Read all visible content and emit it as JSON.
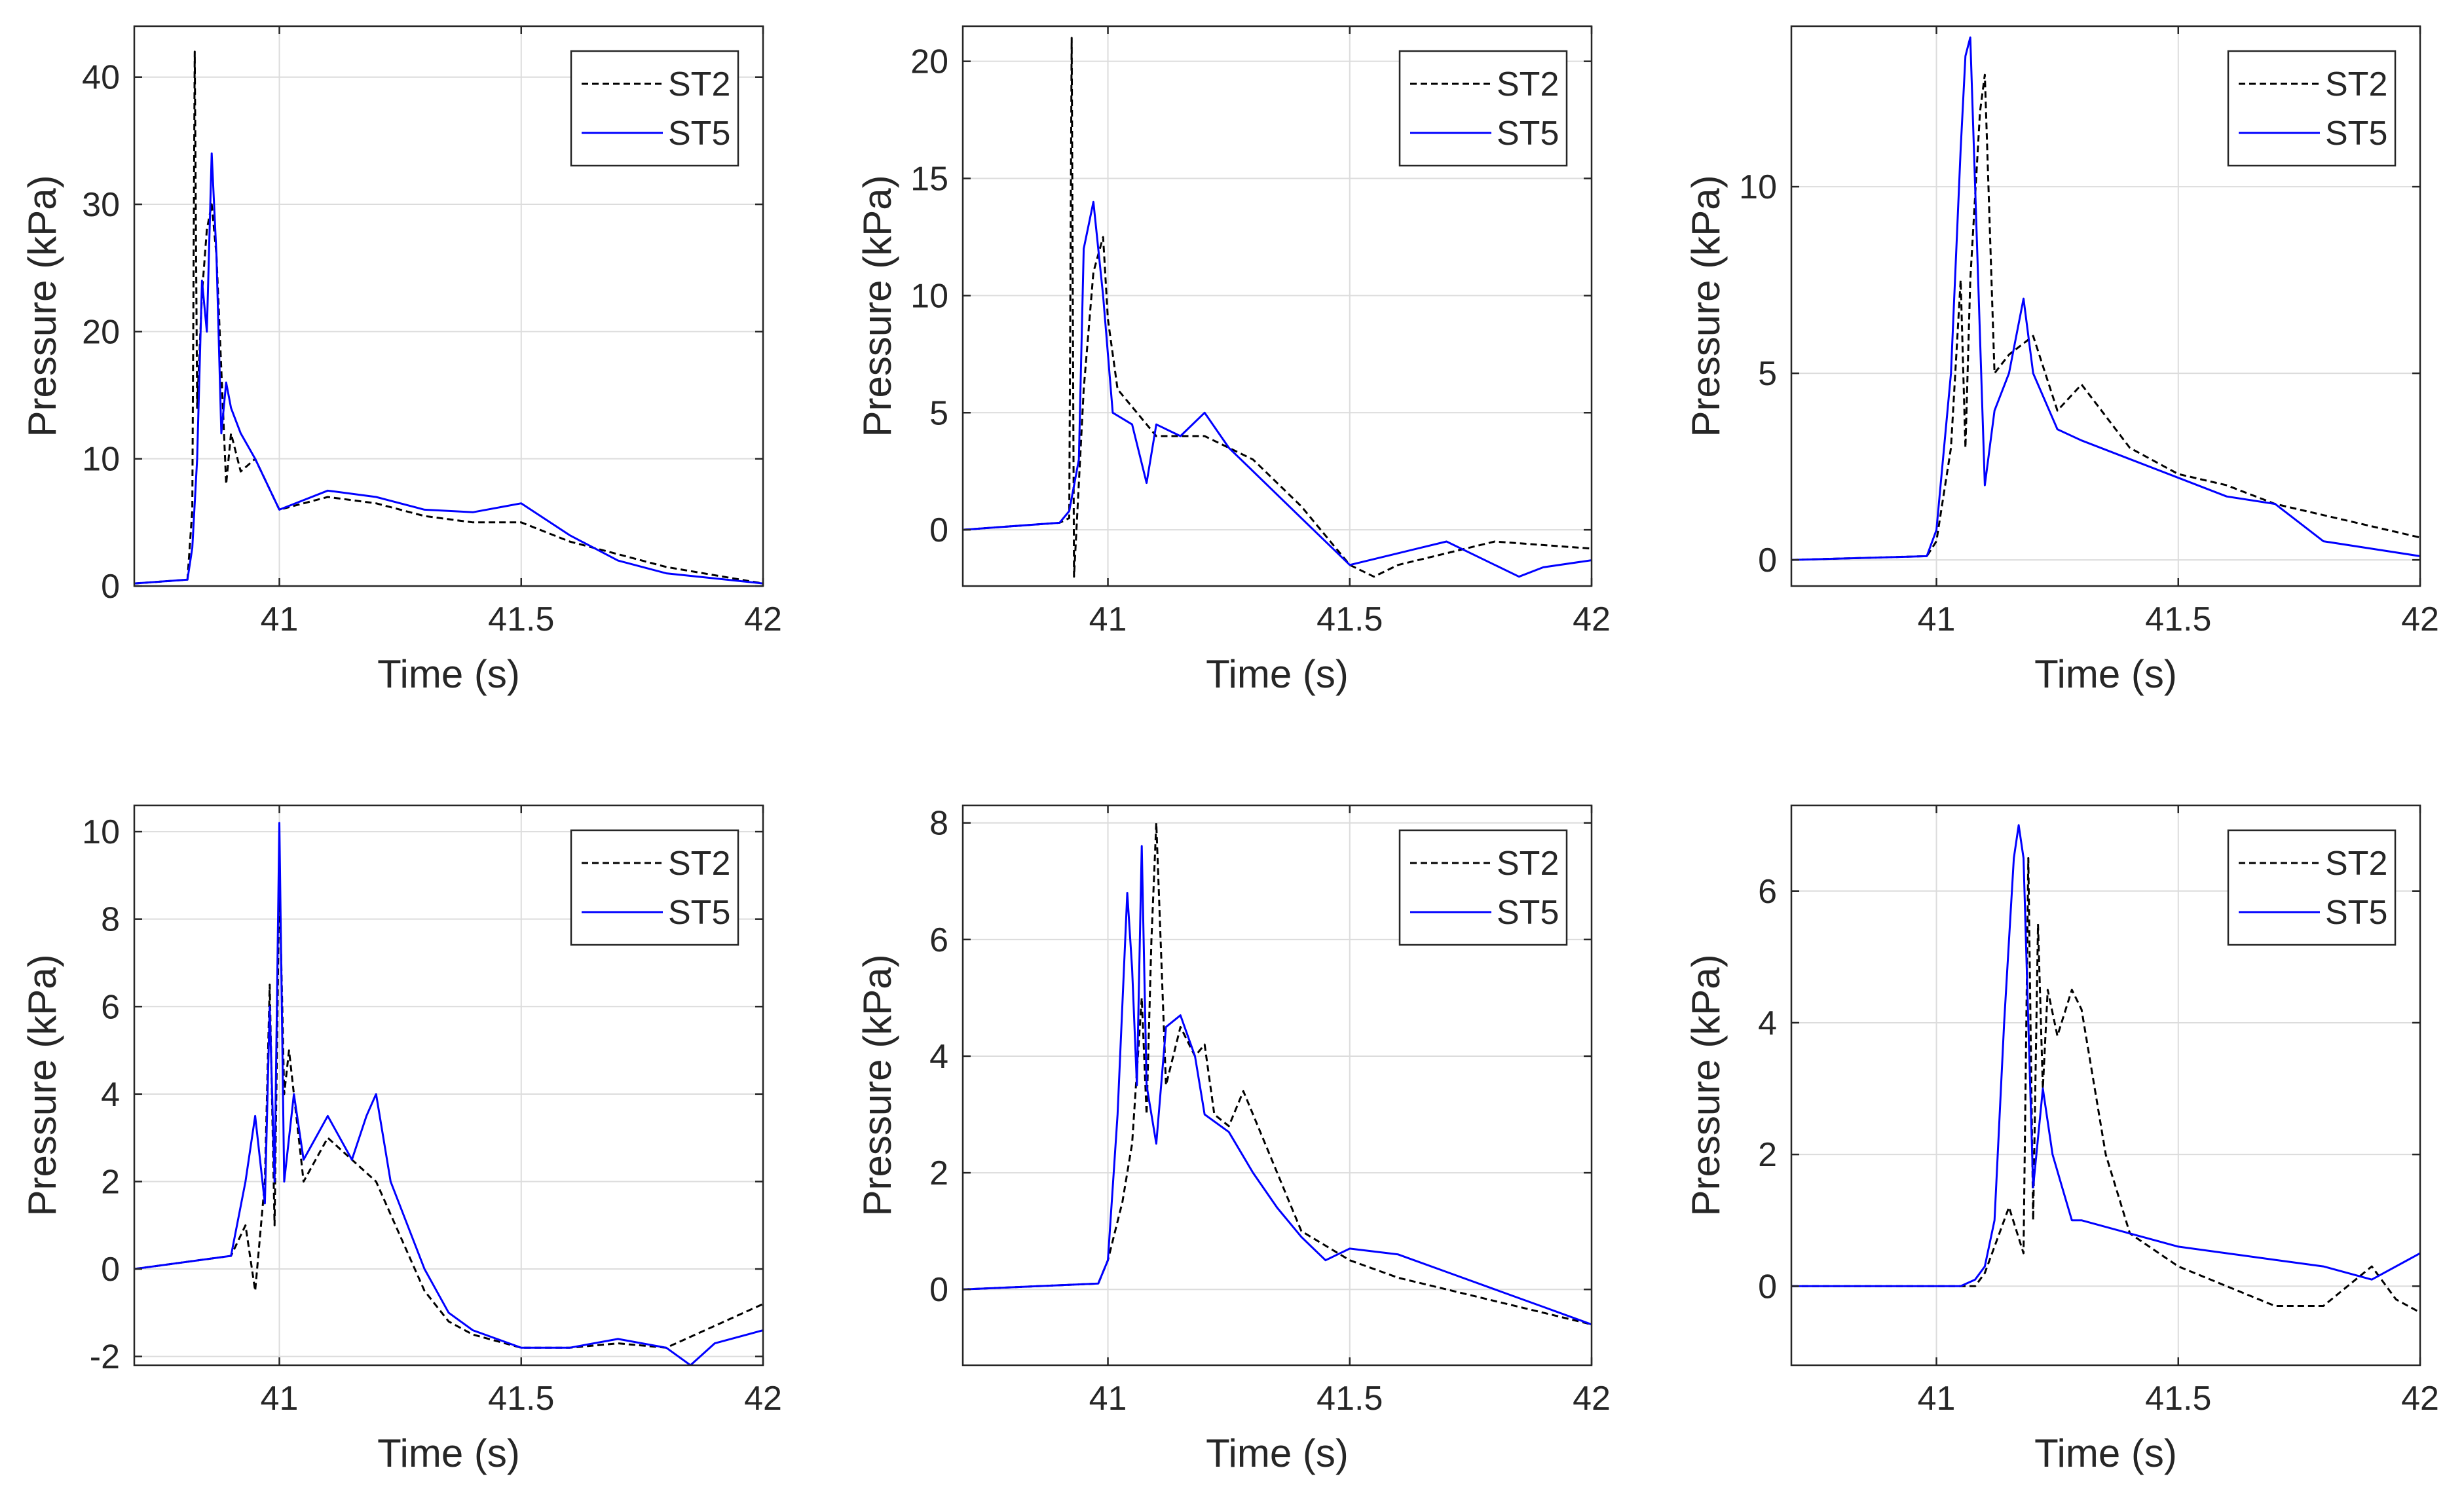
{
  "figure": {
    "rows": 2,
    "cols": 3,
    "background": "#ffffff"
  },
  "style": {
    "st2_color": "#000000",
    "st5_color": "#0000ff",
    "grid_color": "#dcdcdc",
    "axis_color": "#262626",
    "legend_border": "#262626"
  },
  "chart_data": [
    {
      "type": "line",
      "xlabel": "Time (s)",
      "ylabel": "Pressure (kPa)",
      "xlim": [
        40.7,
        42
      ],
      "ylim": [
        0,
        44
      ],
      "xticks": [
        41,
        41.5,
        42
      ],
      "xtick_labels": [
        "41",
        "41.5",
        "42"
      ],
      "yticks": [
        0,
        10,
        20,
        30,
        40
      ],
      "ytick_labels": [
        "0",
        "10",
        "20",
        "30",
        "40"
      ],
      "legend": {
        "position": "top-right",
        "entries": [
          "ST2",
          "ST5"
        ]
      },
      "series": [
        {
          "name": "ST2",
          "style": "dashed",
          "x": [
            40.7,
            40.81,
            40.82,
            40.825,
            40.83,
            40.84,
            40.85,
            40.86,
            40.87,
            40.88,
            40.89,
            40.9,
            40.92,
            40.95,
            41.0,
            41.1,
            41.2,
            41.3,
            41.4,
            41.5,
            41.6,
            41.7,
            41.8,
            42.0
          ],
          "y": [
            0.2,
            0.5,
            6.0,
            42.0,
            14.0,
            23.0,
            28.0,
            30.0,
            26.0,
            17.0,
            8.0,
            12.0,
            9.0,
            10.0,
            6.0,
            7.0,
            6.5,
            5.5,
            5.0,
            5.0,
            3.5,
            2.5,
            1.5,
            0.2
          ]
        },
        {
          "name": "ST5",
          "style": "solid",
          "x": [
            40.7,
            40.81,
            40.82,
            40.83,
            40.84,
            40.85,
            40.86,
            40.87,
            40.88,
            40.89,
            40.9,
            40.92,
            40.95,
            41.0,
            41.1,
            41.2,
            41.3,
            41.4,
            41.5,
            41.6,
            41.7,
            41.8,
            42.0
          ],
          "y": [
            0.2,
            0.5,
            3.0,
            10.0,
            24.0,
            20.0,
            34.0,
            26.0,
            12.0,
            16.0,
            14.0,
            12.0,
            10.0,
            6.0,
            7.5,
            7.0,
            6.0,
            5.8,
            6.5,
            4.0,
            2.0,
            1.0,
            0.2
          ]
        }
      ]
    },
    {
      "type": "line",
      "xlabel": "Time (s)",
      "ylabel": "Pressure (kPa)",
      "xlim": [
        40.7,
        42
      ],
      "ylim": [
        -2.4,
        21.5
      ],
      "xticks": [
        41,
        41.5,
        42
      ],
      "xtick_labels": [
        "41",
        "41.5",
        "42"
      ],
      "yticks": [
        0,
        5,
        10,
        15,
        20
      ],
      "ytick_labels": [
        "0",
        "5",
        "10",
        "15",
        "20"
      ],
      "legend": {
        "position": "top-right",
        "entries": [
          "ST2",
          "ST5"
        ]
      },
      "series": [
        {
          "name": "ST2",
          "style": "dashed",
          "x": [
            40.7,
            40.9,
            40.92,
            40.925,
            40.93,
            40.95,
            40.97,
            40.99,
            41.0,
            41.02,
            41.1,
            41.2,
            41.3,
            41.4,
            41.5,
            41.55,
            41.6,
            41.7,
            41.8,
            42.0
          ],
          "y": [
            0.0,
            0.3,
            0.5,
            21.0,
            -2.0,
            6.0,
            11.0,
            12.5,
            9.0,
            6.0,
            4.0,
            4.0,
            3.0,
            1.0,
            -1.5,
            -2.0,
            -1.5,
            -1.0,
            -0.5,
            -0.8
          ]
        },
        {
          "name": "ST5",
          "style": "solid",
          "x": [
            40.7,
            40.9,
            40.92,
            40.94,
            40.95,
            40.97,
            40.99,
            41.01,
            41.05,
            41.08,
            41.1,
            41.15,
            41.2,
            41.25,
            41.3,
            41.4,
            41.5,
            41.6,
            41.7,
            41.8,
            41.85,
            41.9,
            42.0
          ],
          "y": [
            0.0,
            0.3,
            0.8,
            3.0,
            12.0,
            14.0,
            10.0,
            5.0,
            4.5,
            2.0,
            4.5,
            4.0,
            5.0,
            3.5,
            2.5,
            0.5,
            -1.5,
            -1.0,
            -0.5,
            -1.5,
            -2.0,
            -1.6,
            -1.3
          ]
        }
      ]
    },
    {
      "type": "line",
      "xlabel": "Time (s)",
      "ylabel": "Pressure (kPa)",
      "xlim": [
        40.7,
        42
      ],
      "ylim": [
        -0.7,
        14.3
      ],
      "xticks": [
        41,
        41.5,
        42
      ],
      "xtick_labels": [
        "41",
        "41.5",
        "42"
      ],
      "yticks": [
        0,
        5,
        10
      ],
      "ytick_labels": [
        "0",
        "5",
        "10"
      ],
      "legend": {
        "position": "top-right",
        "entries": [
          "ST2",
          "ST5"
        ]
      },
      "series": [
        {
          "name": "ST2",
          "style": "dashed",
          "x": [
            40.7,
            40.98,
            41.0,
            41.03,
            41.05,
            41.06,
            41.07,
            41.09,
            41.1,
            41.12,
            41.15,
            41.2,
            41.25,
            41.3,
            41.4,
            41.5,
            41.6,
            41.7,
            41.8,
            42.0
          ],
          "y": [
            0.0,
            0.1,
            0.5,
            3.0,
            7.5,
            3.0,
            7.5,
            12.0,
            13.0,
            5.0,
            5.5,
            6.0,
            4.0,
            4.7,
            3.0,
            2.3,
            2.0,
            1.5,
            1.2,
            0.6
          ]
        },
        {
          "name": "ST5",
          "style": "solid",
          "x": [
            40.7,
            40.98,
            41.0,
            41.03,
            41.05,
            41.06,
            41.07,
            41.08,
            41.1,
            41.12,
            41.15,
            41.18,
            41.2,
            41.25,
            41.3,
            41.4,
            41.5,
            41.6,
            41.7,
            41.8,
            41.9,
            42.0
          ],
          "y": [
            0.0,
            0.1,
            0.8,
            5.0,
            11.0,
            13.5,
            14.0,
            10.0,
            2.0,
            4.0,
            5.0,
            7.0,
            5.0,
            3.5,
            3.2,
            2.7,
            2.2,
            1.7,
            1.5,
            0.5,
            0.3,
            0.1
          ]
        }
      ]
    },
    {
      "type": "line",
      "xlabel": "Time (s)",
      "ylabel": "Pressure (kPa)",
      "xlim": [
        40.7,
        42
      ],
      "ylim": [
        -2.2,
        10.6
      ],
      "xticks": [
        41,
        41.5,
        42
      ],
      "xtick_labels": [
        "41",
        "41.5",
        "42"
      ],
      "yticks": [
        -2,
        0,
        2,
        4,
        6,
        8,
        10
      ],
      "ytick_labels": [
        "-2",
        "0",
        "2",
        "4",
        "6",
        "8",
        "10"
      ],
      "legend": {
        "position": "top-right",
        "entries": [
          "ST2",
          "ST5"
        ]
      },
      "series": [
        {
          "name": "ST2",
          "style": "dashed",
          "x": [
            40.7,
            40.9,
            40.93,
            40.95,
            40.97,
            40.98,
            40.99,
            41.0,
            41.01,
            41.02,
            41.05,
            41.1,
            41.15,
            41.2,
            41.3,
            41.35,
            41.4,
            41.5,
            41.6,
            41.7,
            41.8,
            41.9,
            42.0
          ],
          "y": [
            0.0,
            0.3,
            1.0,
            -0.5,
            2.0,
            6.5,
            1.0,
            9.0,
            4.0,
            5.0,
            2.0,
            3.0,
            2.5,
            2.0,
            -0.5,
            -1.2,
            -1.5,
            -1.8,
            -1.8,
            -1.7,
            -1.8,
            -1.3,
            -0.8
          ]
        },
        {
          "name": "ST5",
          "style": "solid",
          "x": [
            40.7,
            40.9,
            40.93,
            40.95,
            40.97,
            40.98,
            40.99,
            41.0,
            41.01,
            41.03,
            41.05,
            41.1,
            41.15,
            41.18,
            41.2,
            41.23,
            41.3,
            41.35,
            41.4,
            41.5,
            41.6,
            41.7,
            41.8,
            41.85,
            41.9,
            42.0
          ],
          "y": [
            0.0,
            0.3,
            2.0,
            3.5,
            1.5,
            6.0,
            2.0,
            10.2,
            2.0,
            4.0,
            2.5,
            3.5,
            2.5,
            3.5,
            4.0,
            2.0,
            0.0,
            -1.0,
            -1.4,
            -1.8,
            -1.8,
            -1.6,
            -1.8,
            -2.2,
            -1.7,
            -1.4
          ]
        }
      ]
    },
    {
      "type": "line",
      "xlabel": "Time (s)",
      "ylabel": "Pressure (kPa)",
      "xlim": [
        40.7,
        42
      ],
      "ylim": [
        -1.3,
        8.3
      ],
      "xticks": [
        41,
        41.5,
        42
      ],
      "xtick_labels": [
        "41",
        "41.5",
        "42"
      ],
      "yticks": [
        0,
        2,
        4,
        6,
        8
      ],
      "ytick_labels": [
        "0",
        "2",
        "4",
        "6",
        "8"
      ],
      "legend": {
        "position": "top-right",
        "entries": [
          "ST2",
          "ST5"
        ]
      },
      "series": [
        {
          "name": "ST2",
          "style": "dashed",
          "x": [
            40.7,
            40.98,
            41.0,
            41.03,
            41.05,
            41.07,
            41.08,
            41.09,
            41.1,
            41.12,
            41.15,
            41.18,
            41.2,
            41.22,
            41.25,
            41.28,
            41.3,
            41.35,
            41.4,
            41.5,
            41.6,
            41.7,
            41.8,
            41.9,
            42.0
          ],
          "y": [
            0.0,
            0.1,
            0.5,
            1.5,
            2.5,
            5.0,
            3.0,
            6.0,
            8.0,
            3.5,
            4.5,
            4.0,
            4.2,
            3.0,
            2.8,
            3.4,
            3.0,
            2.0,
            1.0,
            0.5,
            0.2,
            0.0,
            -0.2,
            -0.4,
            -0.6
          ]
        },
        {
          "name": "ST5",
          "style": "solid",
          "x": [
            40.7,
            40.98,
            41.0,
            41.02,
            41.04,
            41.05,
            41.06,
            41.07,
            41.08,
            41.1,
            41.12,
            41.15,
            41.18,
            41.2,
            41.25,
            41.3,
            41.35,
            41.4,
            41.45,
            41.5,
            41.6,
            41.7,
            41.8,
            41.9,
            42.0
          ],
          "y": [
            0.0,
            0.1,
            0.5,
            3.0,
            6.8,
            5.5,
            3.5,
            7.6,
            3.5,
            2.5,
            4.5,
            4.7,
            4.0,
            3.0,
            2.7,
            2.0,
            1.4,
            0.9,
            0.5,
            0.7,
            0.6,
            0.3,
            0.0,
            -0.3,
            -0.6
          ]
        }
      ]
    },
    {
      "type": "line",
      "xlabel": "Time (s)",
      "ylabel": "Pressure (kPa)",
      "xlim": [
        40.7,
        42
      ],
      "ylim": [
        -1.2,
        7.3
      ],
      "xticks": [
        41,
        41.5,
        42
      ],
      "xtick_labels": [
        "41",
        "41.5",
        "42"
      ],
      "yticks": [
        0,
        2,
        4,
        6
      ],
      "ytick_labels": [
        "0",
        "2",
        "4",
        "6"
      ],
      "legend": {
        "position": "top-right",
        "entries": [
          "ST2",
          "ST5"
        ]
      },
      "series": [
        {
          "name": "ST2",
          "style": "dashed",
          "x": [
            40.7,
            41.08,
            41.1,
            41.15,
            41.18,
            41.19,
            41.2,
            41.21,
            41.22,
            41.23,
            41.25,
            41.28,
            41.3,
            41.35,
            41.4,
            41.5,
            41.6,
            41.7,
            41.8,
            41.9,
            41.95,
            42.0
          ],
          "y": [
            0.0,
            0.0,
            0.2,
            1.2,
            0.5,
            6.5,
            1.0,
            5.5,
            3.0,
            4.5,
            3.8,
            4.5,
            4.2,
            2.0,
            0.8,
            0.3,
            0.0,
            -0.3,
            -0.3,
            0.3,
            -0.2,
            -0.4
          ]
        },
        {
          "name": "ST5",
          "style": "solid",
          "x": [
            40.7,
            41.05,
            41.08,
            41.1,
            41.12,
            41.14,
            41.16,
            41.17,
            41.18,
            41.19,
            41.2,
            41.22,
            41.24,
            41.26,
            41.28,
            41.3,
            41.4,
            41.5,
            41.6,
            41.7,
            41.8,
            41.9,
            42.0
          ],
          "y": [
            0.0,
            0.0,
            0.1,
            0.3,
            1.0,
            4.0,
            6.5,
            7.0,
            6.5,
            4.0,
            1.5,
            3.0,
            2.0,
            1.5,
            1.0,
            1.0,
            0.8,
            0.6,
            0.5,
            0.4,
            0.3,
            0.1,
            0.5
          ]
        }
      ]
    }
  ]
}
